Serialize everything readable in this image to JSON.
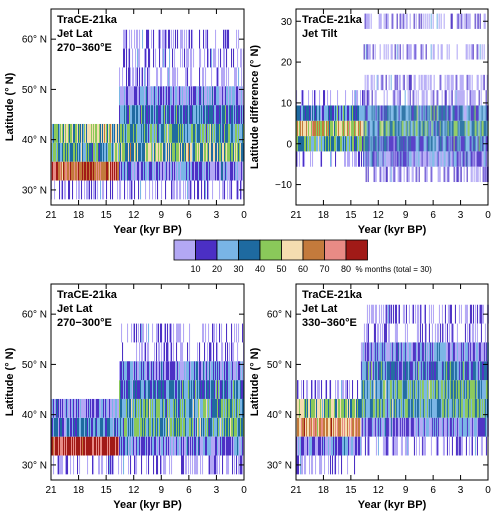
{
  "colorbar": {
    "colors": [
      "#b3a8f5",
      "#4b2fc4",
      "#79b5e6",
      "#1e6aa0",
      "#8ac85a",
      "#f5ddb0",
      "#c37a3c",
      "#e88b85",
      "#a11a17"
    ],
    "tick_labels": [
      "10",
      "20",
      "30",
      "40",
      "50",
      "60",
      "70",
      "80"
    ],
    "label": "% months (total = 30)"
  },
  "chart_data": [
    {
      "type": "heatmap",
      "panel": "top-left",
      "annotation": [
        "TraCE-21ka",
        "Jet Lat",
        "270−360°E"
      ],
      "xlabel": "Year (kyr BP)",
      "ylabel": "Latitude (° N)",
      "xlim": [
        21,
        0
      ],
      "ylim": [
        27,
        66
      ],
      "xticks": [
        21,
        18,
        15,
        12,
        9,
        6,
        3,
        0
      ],
      "xtick_labels": [
        "21",
        "18",
        "15",
        "12",
        "9",
        "6",
        "3",
        "0"
      ],
      "yticks": [
        30,
        40,
        50,
        60
      ],
      "ytick_labels": [
        "30° N",
        "40° N",
        "50° N",
        "60° N"
      ],
      "bin_width": 3.75,
      "y_range": [
        30,
        62
      ],
      "regimes": [
        {
          "x": [
            21,
            13.6
          ],
          "bins": {
            "33.75": 8,
            "37.5": 4,
            "41.25": 5,
            "30": 1
          }
        },
        {
          "x": [
            13.6,
            0
          ],
          "bins": {
            "37.5": 5,
            "41.25": 4,
            "45": 3,
            "48.75": 2,
            "33.75": 2,
            "52.5": 1,
            "56.25": 1,
            "30": 1,
            "60": 1
          }
        }
      ]
    },
    {
      "type": "heatmap",
      "panel": "top-right",
      "annotation": [
        "TraCE-21ka",
        "Jet Tilt"
      ],
      "xlabel": "Year (kyr BP)",
      "ylabel": "Latitude difference (° N)",
      "xlim": [
        21,
        0
      ],
      "ylim": [
        -15,
        33
      ],
      "xticks": [
        21,
        18,
        15,
        12,
        9,
        6,
        3,
        0
      ],
      "xtick_labels": [
        "21",
        "18",
        "15",
        "12",
        "9",
        "6",
        "3",
        "0"
      ],
      "yticks": [
        -10,
        0,
        10,
        20,
        30
      ],
      "ytick_labels": [
        "−10",
        "0",
        "10",
        "20",
        "30"
      ],
      "bin_width": 3.75,
      "y_range": [
        -14,
        32
      ],
      "regimes": [
        {
          "x": [
            21,
            13.6
          ],
          "bins": {
            "3.75": 6,
            "0": 4,
            "7.5": 3,
            "-3.75": 1,
            "11.25": 1
          }
        },
        {
          "x": [
            13.6,
            0
          ],
          "bins": {
            "3.75": 4,
            "0": 3,
            "7.5": 3,
            "-3.75": 2,
            "11.25": 1,
            "15": 1,
            "-7.5": 1,
            "22.5": 1,
            "30": 1
          }
        }
      ]
    },
    {
      "type": "heatmap",
      "panel": "bottom-left",
      "annotation": [
        "TraCE-21ka",
        "Jet Lat",
        "270−300°E"
      ],
      "xlabel": "Year (kyr BP)",
      "ylabel": "Latitude (° N)",
      "xlim": [
        21,
        0
      ],
      "ylim": [
        27,
        66
      ],
      "xticks": [
        21,
        18,
        15,
        12,
        9,
        6,
        3,
        0
      ],
      "xtick_labels": [
        "21",
        "18",
        "15",
        "12",
        "9",
        "6",
        "3",
        "0"
      ],
      "yticks": [
        30,
        40,
        50,
        60
      ],
      "ytick_labels": [
        "30° N",
        "40° N",
        "50° N",
        "60° N"
      ],
      "bin_width": 3.75,
      "y_range": [
        30,
        62
      ],
      "regimes": [
        {
          "x": [
            21,
            13.6
          ],
          "bins": {
            "33.75": 9,
            "37.5": 3,
            "41.25": 2,
            "30": 1
          }
        },
        {
          "x": [
            13.6,
            0
          ],
          "bins": {
            "37.5": 4,
            "41.25": 4,
            "45": 3,
            "48.75": 2,
            "33.75": 2,
            "52.5": 1,
            "56.25": 1,
            "30": 1
          }
        }
      ]
    },
    {
      "type": "heatmap",
      "panel": "bottom-right",
      "annotation": [
        "TraCE-21ka",
        "Jet Lat",
        "330−360°E"
      ],
      "xlabel": "Year (kyr BP)",
      "ylabel": "Latitude (° N)",
      "xlim": [
        21,
        0
      ],
      "ylim": [
        27,
        66
      ],
      "xticks": [
        21,
        18,
        15,
        12,
        9,
        6,
        3,
        0
      ],
      "xtick_labels": [
        "21",
        "18",
        "15",
        "12",
        "9",
        "6",
        "3",
        "0"
      ],
      "yticks": [
        30,
        40,
        50,
        60
      ],
      "ytick_labels": [
        "30° N",
        "40° N",
        "50° N",
        "60° N"
      ],
      "bin_width": 3.75,
      "y_range": [
        30,
        64
      ],
      "regimes": [
        {
          "x": [
            21,
            13.9
          ],
          "bins": {
            "37.5": 7,
            "41.25": 5,
            "33.75": 2,
            "45": 1,
            "30": 1
          }
        },
        {
          "x": [
            13.9,
            0
          ],
          "bins": {
            "45": 4,
            "41.25": 4,
            "48.75": 3,
            "37.5": 2,
            "52.5": 2,
            "56.25": 1,
            "33.75": 1,
            "60": 1
          }
        }
      ]
    }
  ]
}
